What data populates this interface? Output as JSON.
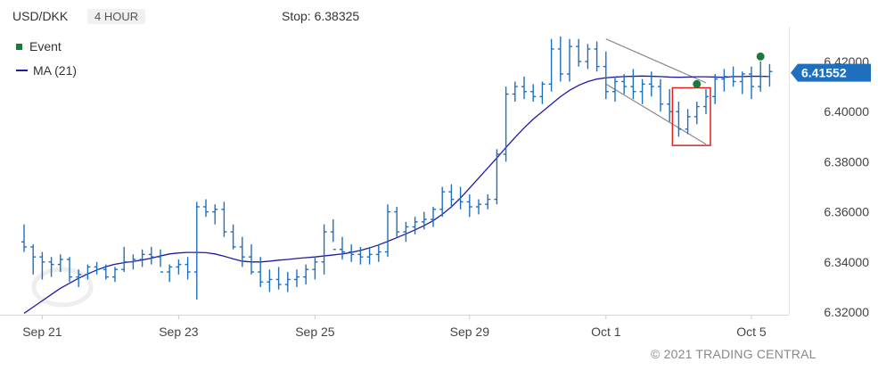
{
  "header": {
    "symbol": "USD/DKK",
    "timeframe": "4 HOUR",
    "stop_label": "Stop: 6.38325"
  },
  "legend": {
    "event_label": "Event",
    "ma_label": "MA (21)"
  },
  "copyright": "© 2021 TRADING CENTRAL",
  "colors": {
    "bars": "#1f6fbf",
    "ma": "#1f1aa6",
    "event": "#1a7a3a",
    "channel": "#8a8a8a",
    "highlight": "#e02020",
    "last_price_bg": "#1f6fbf"
  },
  "chart_data": {
    "type": "ohlc",
    "title": "",
    "ylim": [
      6.32,
      6.43
    ],
    "yticks": [
      "6.32000",
      "6.34000",
      "6.36000",
      "6.38000",
      "6.40000",
      "6.42000"
    ],
    "yticks_values": [
      6.32,
      6.34,
      6.36,
      6.38,
      6.4,
      6.42
    ],
    "xticks": [
      {
        "label": "Sep 21",
        "bar": 2
      },
      {
        "label": "Sep 23",
        "bar": 17
      },
      {
        "label": "Sep 25",
        "bar": 32
      },
      {
        "label": "Sep 29",
        "bar": 49
      },
      {
        "label": "Oct 1",
        "bar": 64
      },
      {
        "label": "Oct 5",
        "bar": 80
      }
    ],
    "last_price": "6.41552",
    "last_price_value": 6.41552,
    "bars": [
      [
        6.348,
        6.355,
        6.344,
        6.346
      ],
      [
        6.346,
        6.347,
        6.335,
        6.342
      ],
      [
        6.342,
        6.344,
        6.333,
        6.34
      ],
      [
        6.34,
        6.342,
        6.334,
        6.339
      ],
      [
        6.339,
        6.343,
        6.336,
        6.341
      ],
      [
        6.341,
        6.342,
        6.332,
        6.334
      ],
      [
        6.334,
        6.337,
        6.33,
        6.335
      ],
      [
        6.335,
        6.339,
        6.333,
        6.338
      ],
      [
        6.338,
        6.34,
        6.335,
        6.337
      ],
      [
        6.337,
        6.339,
        6.333,
        6.334
      ],
      [
        6.334,
        6.338,
        6.332,
        6.337
      ],
      [
        6.337,
        6.346,
        6.336,
        6.34
      ],
      [
        6.34,
        6.343,
        6.337,
        6.341
      ],
      [
        6.341,
        6.345,
        6.338,
        6.343
      ],
      [
        6.343,
        6.346,
        6.339,
        6.342
      ],
      [
        6.342,
        6.345,
        6.338,
        6.336
      ],
      [
        6.336,
        6.339,
        6.332,
        6.338
      ],
      [
        6.338,
        6.341,
        6.335,
        6.339
      ],
      [
        6.339,
        6.342,
        6.333,
        6.336
      ],
      [
        6.336,
        6.364,
        6.325,
        6.362
      ],
      [
        6.362,
        6.365,
        6.358,
        6.36
      ],
      [
        6.36,
        6.363,
        6.355,
        6.361
      ],
      [
        6.361,
        6.364,
        6.35,
        6.352
      ],
      [
        6.352,
        6.355,
        6.345,
        6.346
      ],
      [
        6.346,
        6.35,
        6.338,
        6.342
      ],
      [
        6.342,
        6.347,
        6.335,
        6.336
      ],
      [
        6.336,
        6.342,
        6.33,
        6.332
      ],
      [
        6.332,
        6.337,
        6.328,
        6.333
      ],
      [
        6.333,
        6.338,
        6.329,
        6.331
      ],
      [
        6.331,
        6.336,
        6.328,
        6.333
      ],
      [
        6.333,
        6.337,
        6.33,
        6.334
      ],
      [
        6.334,
        6.339,
        6.331,
        6.337
      ],
      [
        6.337,
        6.342,
        6.333,
        6.34
      ],
      [
        6.34,
        6.355,
        6.335,
        6.352
      ],
      [
        6.352,
        6.357,
        6.348,
        6.345
      ],
      [
        6.345,
        6.35,
        6.341,
        6.344
      ],
      [
        6.344,
        6.347,
        6.34,
        6.343
      ],
      [
        6.343,
        6.346,
        6.339,
        6.342
      ],
      [
        6.342,
        6.346,
        6.339,
        6.343
      ],
      [
        6.343,
        6.347,
        6.34,
        6.344
      ],
      [
        6.344,
        6.363,
        6.342,
        6.36
      ],
      [
        6.36,
        6.362,
        6.35,
        6.352
      ],
      [
        6.352,
        6.356,
        6.348,
        6.354
      ],
      [
        6.354,
        6.358,
        6.351,
        6.356
      ],
      [
        6.356,
        6.36,
        6.353,
        6.357
      ],
      [
        6.357,
        6.362,
        6.354,
        6.361
      ],
      [
        6.361,
        6.37,
        6.358,
        6.368
      ],
      [
        6.368,
        6.371,
        6.362,
        6.365
      ],
      [
        6.365,
        6.37,
        6.361,
        6.364
      ],
      [
        6.364,
        6.367,
        6.358,
        6.362
      ],
      [
        6.362,
        6.365,
        6.359,
        6.363
      ],
      [
        6.363,
        6.367,
        6.361,
        6.365
      ],
      [
        6.365,
        6.385,
        6.363,
        6.383
      ],
      [
        6.383,
        6.41,
        6.38,
        6.407
      ],
      [
        6.407,
        6.412,
        6.404,
        6.41
      ],
      [
        6.41,
        6.414,
        6.405,
        6.408
      ],
      [
        6.408,
        6.411,
        6.404,
        6.406
      ],
      [
        6.406,
        6.412,
        6.403,
        6.411
      ],
      [
        6.411,
        6.429,
        6.408,
        6.425
      ],
      [
        6.425,
        6.43,
        6.412,
        6.415
      ],
      [
        6.415,
        6.429,
        6.412,
        6.426
      ],
      [
        6.426,
        6.429,
        6.418,
        6.42
      ],
      [
        6.42,
        6.427,
        6.417,
        6.425
      ],
      [
        6.425,
        6.428,
        6.416,
        6.418
      ],
      [
        6.418,
        6.424,
        6.405,
        6.408
      ],
      [
        6.408,
        6.414,
        6.404,
        6.412
      ],
      [
        6.412,
        6.415,
        6.407,
        6.41
      ],
      [
        6.41,
        6.417,
        6.405,
        6.408
      ],
      [
        6.408,
        6.413,
        6.403,
        6.411
      ],
      [
        6.411,
        6.416,
        6.406,
        6.41
      ],
      [
        6.41,
        6.413,
        6.4,
        6.403
      ],
      [
        6.403,
        6.409,
        6.396,
        6.4
      ],
      [
        6.4,
        6.404,
        6.39,
        6.393
      ],
      [
        6.393,
        6.401,
        6.391,
        6.398
      ],
      [
        6.398,
        6.404,
        6.395,
        6.402
      ],
      [
        6.402,
        6.409,
        6.399,
        6.406
      ],
      [
        6.406,
        6.415,
        6.403,
        6.413
      ],
      [
        6.413,
        6.417,
        6.408,
        6.414
      ],
      [
        6.414,
        6.418,
        6.41,
        6.412
      ],
      [
        6.412,
        6.416,
        6.407,
        6.415
      ],
      [
        6.415,
        6.418,
        6.405,
        6.41
      ],
      [
        6.41,
        6.42,
        6.408,
        6.414
      ],
      [
        6.414,
        6.419,
        6.41,
        6.416
      ]
    ],
    "ma_21": [
      6.3195,
      6.322,
      6.3245,
      6.327,
      6.3295,
      6.3315,
      6.3335,
      6.3352,
      6.3368,
      6.3381,
      6.3391,
      6.3397,
      6.3402,
      6.3408,
      6.3415,
      6.3424,
      6.3432,
      6.3436,
      6.3438,
      6.3438,
      6.3437,
      6.3432,
      6.3423,
      6.3412,
      6.3403,
      6.34,
      6.34,
      6.3403,
      6.3407,
      6.341,
      6.3414,
      6.3417,
      6.342,
      6.3424,
      6.3428,
      6.3432,
      6.3438,
      6.3446,
      6.3456,
      6.3468,
      6.3482,
      6.3497,
      6.3512,
      6.3528,
      6.3545,
      6.3565,
      6.359,
      6.362,
      6.3655,
      6.3695,
      6.3735,
      6.3775,
      6.3815,
      6.3857,
      6.3897,
      6.3935,
      6.397,
      6.4,
      6.403,
      6.406,
      6.4085,
      6.4105,
      6.412,
      6.413,
      6.4135,
      6.4138,
      6.414,
      6.4141,
      6.4142,
      6.4141,
      6.414,
      6.4138,
      6.4137,
      6.4138,
      6.4139,
      6.4139,
      6.4138,
      6.4137,
      6.414,
      6.414,
      6.4141,
      6.4141,
      6.414
    ],
    "events": [
      {
        "bar": 74,
        "value": 6.411
      },
      {
        "bar": 81,
        "value": 6.422
      }
    ],
    "channel": {
      "upper": [
        {
          "bar": 64,
          "value": 6.429
        },
        {
          "bar": 75,
          "value": 6.4115
        }
      ],
      "lower": [
        {
          "bar": 64,
          "value": 6.411
        },
        {
          "bar": 75,
          "value": 6.387
        }
      ]
    },
    "highlight_box": {
      "bar_from": 72,
      "bar_to": 75,
      "low": 6.3865,
      "high": 6.4095
    }
  }
}
